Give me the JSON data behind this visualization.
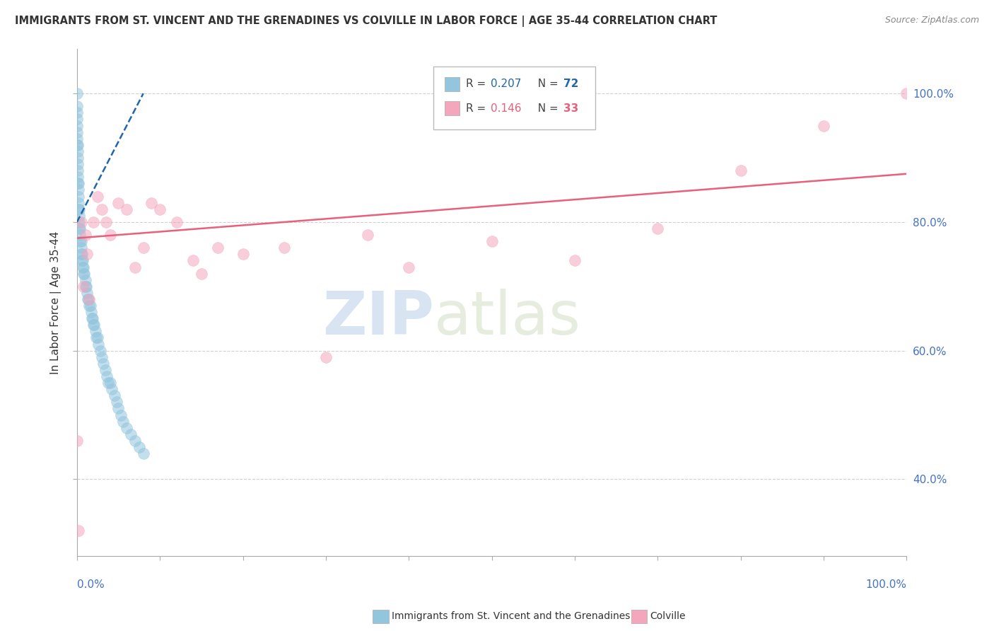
{
  "title": "IMMIGRANTS FROM ST. VINCENT AND THE GRENADINES VS COLVILLE IN LABOR FORCE | AGE 35-44 CORRELATION CHART",
  "source": "Source: ZipAtlas.com",
  "ylabel": "In Labor Force | Age 35-44",
  "blue_R": 0.207,
  "blue_N": 72,
  "pink_R": 0.146,
  "pink_N": 33,
  "blue_color": "#92c5de",
  "pink_color": "#f4a6bc",
  "blue_line_color": "#2166ac",
  "pink_line_color": "#e8607a",
  "blue_x": [
    0.0,
    0.0,
    0.0,
    0.0,
    0.0,
    0.0,
    0.0,
    0.0,
    0.001,
    0.001,
    0.001,
    0.001,
    0.001,
    0.001,
    0.001,
    0.002,
    0.002,
    0.002,
    0.002,
    0.002,
    0.003,
    0.003,
    0.003,
    0.003,
    0.004,
    0.004,
    0.004,
    0.005,
    0.005,
    0.005,
    0.006,
    0.006,
    0.007,
    0.007,
    0.008,
    0.008,
    0.009,
    0.01,
    0.01,
    0.011,
    0.012,
    0.013,
    0.014,
    0.015,
    0.016,
    0.017,
    0.018,
    0.019,
    0.02,
    0.021,
    0.022,
    0.023,
    0.025,
    0.026,
    0.028,
    0.03,
    0.032,
    0.034,
    0.036,
    0.038,
    0.04,
    0.042,
    0.045,
    0.048,
    0.05,
    0.053,
    0.056,
    0.06,
    0.065,
    0.07,
    0.075,
    0.08
  ],
  "blue_y": [
    1.0,
    0.98,
    0.97,
    0.96,
    0.95,
    0.94,
    0.93,
    0.92,
    0.92,
    0.91,
    0.9,
    0.89,
    0.88,
    0.87,
    0.86,
    0.86,
    0.85,
    0.84,
    0.83,
    0.82,
    0.82,
    0.81,
    0.8,
    0.79,
    0.79,
    0.78,
    0.77,
    0.77,
    0.76,
    0.75,
    0.75,
    0.74,
    0.74,
    0.73,
    0.73,
    0.72,
    0.72,
    0.71,
    0.7,
    0.7,
    0.69,
    0.68,
    0.68,
    0.67,
    0.67,
    0.66,
    0.65,
    0.65,
    0.64,
    0.64,
    0.63,
    0.62,
    0.62,
    0.61,
    0.6,
    0.59,
    0.58,
    0.57,
    0.56,
    0.55,
    0.55,
    0.54,
    0.53,
    0.52,
    0.51,
    0.5,
    0.49,
    0.48,
    0.47,
    0.46,
    0.45,
    0.44
  ],
  "pink_x": [
    0.0,
    0.002,
    0.005,
    0.008,
    0.01,
    0.012,
    0.015,
    0.02,
    0.025,
    0.03,
    0.035,
    0.04,
    0.05,
    0.06,
    0.07,
    0.08,
    0.09,
    0.1,
    0.12,
    0.14,
    0.15,
    0.17,
    0.2,
    0.25,
    0.3,
    0.35,
    0.4,
    0.5,
    0.6,
    0.7,
    0.8,
    0.9,
    1.0
  ],
  "pink_y": [
    0.46,
    0.32,
    0.8,
    0.7,
    0.78,
    0.75,
    0.68,
    0.8,
    0.84,
    0.82,
    0.8,
    0.78,
    0.83,
    0.82,
    0.73,
    0.76,
    0.83,
    0.82,
    0.8,
    0.74,
    0.72,
    0.76,
    0.75,
    0.76,
    0.59,
    0.78,
    0.73,
    0.77,
    0.74,
    0.79,
    0.88,
    0.95,
    1.0
  ],
  "blue_line_x0": 0.0,
  "blue_line_y0": 0.8,
  "blue_line_x1": 0.08,
  "blue_line_y1": 1.0,
  "pink_line_x0": 0.0,
  "pink_line_y0": 0.775,
  "pink_line_x1": 1.0,
  "pink_line_y1": 0.875,
  "xlim": [
    0.0,
    1.0
  ],
  "ylim": [
    0.28,
    1.07
  ],
  "yticks": [
    0.4,
    0.6,
    0.8,
    1.0
  ],
  "ytick_labels": [
    "40.0%",
    "60.0%",
    "80.0%",
    "100.0%"
  ],
  "watermark_zip": "ZIP",
  "watermark_atlas": "atlas",
  "background_color": "#ffffff",
  "grid_color": "#d0d0d0"
}
